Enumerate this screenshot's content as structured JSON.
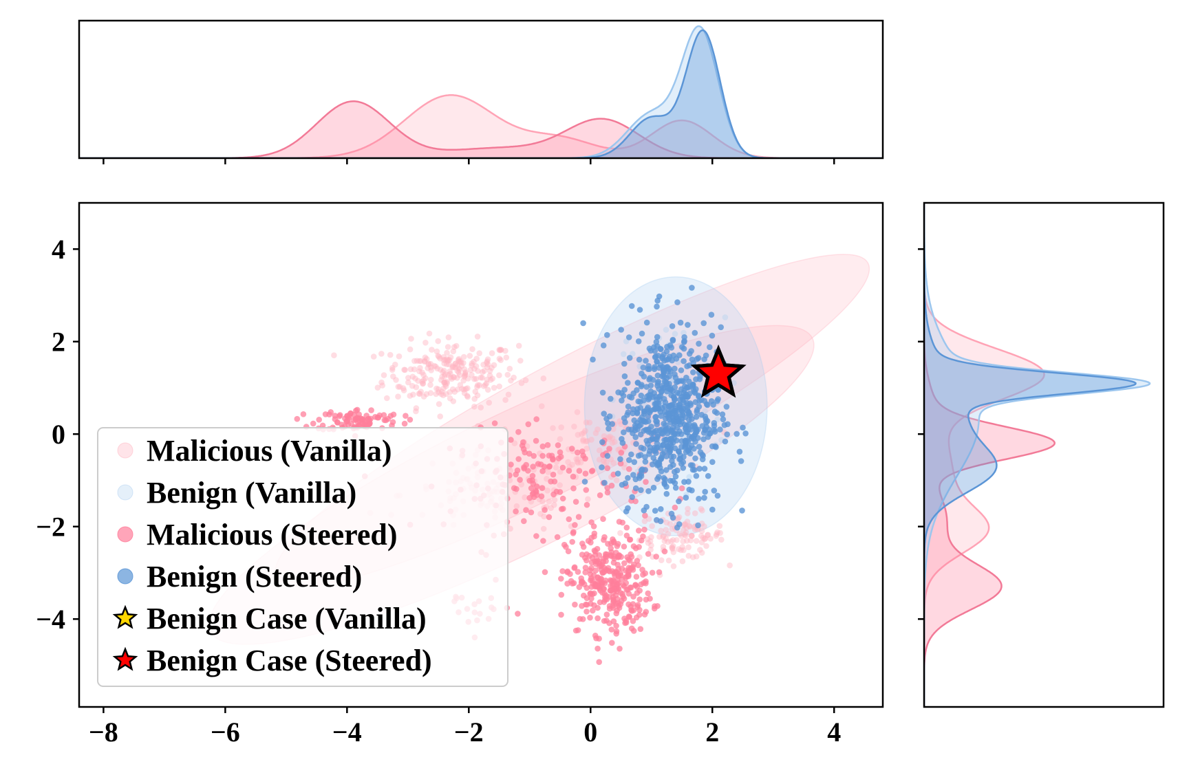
{
  "chart_data": {
    "type": "scatter",
    "title": "",
    "xlabel": "",
    "ylabel": "",
    "xlim": [
      -8.4,
      4.8
    ],
    "ylim": [
      -5.9,
      5.0
    ],
    "xticks": [
      -8,
      -6,
      -4,
      -2,
      0,
      2,
      4
    ],
    "yticks": [
      -4,
      -2,
      0,
      2,
      4
    ],
    "xtick_labels": [
      "−8",
      "−6",
      "−4",
      "−2",
      "0",
      "2",
      "4"
    ],
    "ytick_labels": [
      "−4",
      "−2",
      "0",
      "2",
      "4"
    ],
    "grid": false,
    "legend_position": "lower-left",
    "colors": {
      "malicious_vanilla": "#ffb3c0",
      "malicious_steered": "#ff7f9b",
      "benign_vanilla": "#a8cdf0",
      "benign_steered": "#5b95d6",
      "case_vanilla": "#ffd700",
      "case_steered": "#ff0000"
    },
    "series": [
      {
        "name": "Malicious (Vanilla)",
        "key": "malicious_vanilla",
        "clusters": [
          {
            "center": [
              -2.3,
              1.3
            ],
            "spread": [
              0.55,
              0.35
            ],
            "n": 240
          },
          {
            "center": [
              1.5,
              -2.2
            ],
            "spread": [
              0.35,
              0.25
            ],
            "n": 110
          },
          {
            "center": [
              -1.5,
              -1.3
            ],
            "spread": [
              0.8,
              0.45
            ],
            "n": 110
          },
          {
            "center": [
              0.3,
              -0.2
            ],
            "spread": [
              0.6,
              0.3
            ],
            "n": 90
          }
        ],
        "ellipses": [
          {
            "center": [
              -0.3,
              0.3
            ],
            "rx": 5.5,
            "ry": 1.3,
            "angle_deg": -28
          },
          {
            "center": [
              -1.3,
              -1.1
            ],
            "rx": 5.5,
            "ry": 1.5,
            "angle_deg": -26
          }
        ]
      },
      {
        "name": "Benign (Vanilla)",
        "key": "benign_vanilla",
        "clusters": [
          {
            "center": [
              1.3,
              0.7
            ],
            "spread": [
              0.45,
              0.9
            ],
            "n": 80
          }
        ],
        "ellipses": [
          {
            "center": [
              1.4,
              0.6
            ],
            "rx": 1.5,
            "ry": 2.8,
            "angle_deg": 0
          }
        ]
      },
      {
        "name": "Malicious (Steered)",
        "key": "malicious_steered",
        "clusters": [
          {
            "center": [
              -3.8,
              0.3
            ],
            "spread": [
              0.35,
              0.12
            ],
            "n": 90
          },
          {
            "center": [
              0.3,
              -3.2
            ],
            "spread": [
              0.35,
              0.55
            ],
            "n": 330
          },
          {
            "center": [
              -0.7,
              -1.0
            ],
            "spread": [
              0.8,
              0.55
            ],
            "n": 160
          },
          {
            "center": [
              -1.9,
              -3.8
            ],
            "spread": [
              0.3,
              0.25
            ],
            "n": 20
          }
        ],
        "ellipses": []
      },
      {
        "name": "Benign (Steered)",
        "key": "benign_steered",
        "clusters": [
          {
            "center": [
              1.3,
              0.4
            ],
            "spread": [
              0.42,
              0.95
            ],
            "n": 650
          }
        ],
        "ellipses": []
      }
    ],
    "cases": [
      {
        "name": "Benign Case (Vanilla)",
        "key": "case_vanilla",
        "x": 2.1,
        "y": 1.3
      },
      {
        "name": "Benign Case (Steered)",
        "key": "case_steered",
        "x": 2.1,
        "y": 1.3
      }
    ],
    "marginal_x": {
      "xlim": [
        -8.4,
        4.8
      ],
      "series": [
        {
          "key": "malicious_vanilla",
          "modes": [
            [
              -2.3,
              0.75,
              0.5
            ],
            [
              -0.5,
              0.6,
              0.15
            ],
            [
              1.5,
              0.5,
              0.3
            ]
          ]
        },
        {
          "key": "malicious_steered",
          "modes": [
            [
              -3.9,
              0.6,
              0.45
            ],
            [
              0.2,
              0.6,
              0.3
            ],
            [
              -1.5,
              0.9,
              0.08
            ]
          ]
        },
        {
          "key": "benign_vanilla",
          "modes": [
            [
              1.8,
              0.3,
              1.0
            ],
            [
              1.0,
              0.4,
              0.35
            ]
          ]
        },
        {
          "key": "benign_steered",
          "modes": [
            [
              1.85,
              0.28,
              1.0
            ],
            [
              1.0,
              0.35,
              0.32
            ]
          ]
        }
      ]
    },
    "marginal_y": {
      "ylim": [
        -5.9,
        5.0
      ],
      "series": [
        {
          "key": "malicious_vanilla",
          "modes": [
            [
              1.3,
              0.55,
              0.65
            ],
            [
              -2.1,
              0.5,
              0.3
            ],
            [
              -0.8,
              0.9,
              0.15
            ]
          ]
        },
        {
          "key": "malicious_steered",
          "modes": [
            [
              -0.2,
              0.35,
              0.7
            ],
            [
              -3.3,
              0.5,
              0.42
            ],
            [
              -1.8,
              0.6,
              0.12
            ],
            [
              0.6,
              0.5,
              0.05
            ]
          ]
        },
        {
          "key": "benign_vanilla",
          "modes": [
            [
              1.1,
              0.22,
              1.0
            ],
            [
              0.3,
              1.2,
              0.3
            ]
          ]
        },
        {
          "key": "benign_steered",
          "modes": [
            [
              1.1,
              0.22,
              1.0
            ],
            [
              -0.8,
              0.5,
              0.3
            ],
            [
              0.4,
              0.9,
              0.22
            ]
          ]
        }
      ]
    },
    "legend": [
      {
        "label": "Malicious (Vanilla)",
        "key": "malicious_vanilla",
        "marker": "circle",
        "alpha": 0.35
      },
      {
        "label": "Benign (Vanilla)",
        "key": "benign_vanilla",
        "marker": "circle",
        "alpha": 0.3
      },
      {
        "label": "Malicious (Steered)",
        "key": "malicious_steered",
        "marker": "circle",
        "alpha": 0.7
      },
      {
        "label": "Benign (Steered)",
        "key": "benign_steered",
        "marker": "circle",
        "alpha": 0.7
      },
      {
        "label": "Benign Case (Vanilla)",
        "key": "case_vanilla",
        "marker": "star",
        "alpha": 1
      },
      {
        "label": "Benign Case (Steered)",
        "key": "case_steered",
        "marker": "star",
        "alpha": 1
      }
    ]
  }
}
